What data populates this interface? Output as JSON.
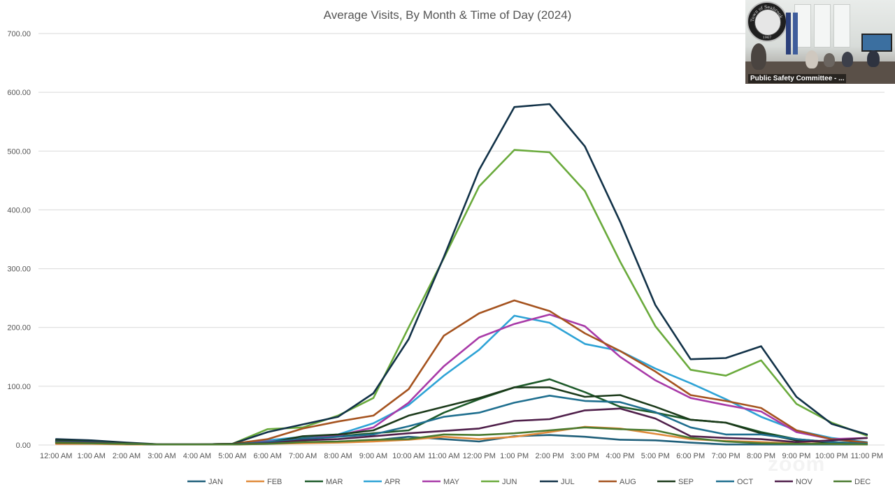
{
  "chart_data": {
    "type": "line",
    "title": "Average Visits, By Month & Time of Day (2024)",
    "xlabel": "",
    "ylabel": "",
    "ylim": [
      0,
      700
    ],
    "y_ticks": [
      "0.00",
      "100.00",
      "200.00",
      "300.00",
      "400.00",
      "500.00",
      "600.00",
      "700.00"
    ],
    "grid": "horizontal",
    "legend_position": "bottom",
    "categories": [
      "12:00 AM",
      "1:00 AM",
      "2:00 AM",
      "3:00 AM",
      "4:00 AM",
      "5:00 AM",
      "6:00 AM",
      "7:00 AM",
      "8:00 AM",
      "9:00 AM",
      "10:00 AM",
      "11:00 AM",
      "12:00 PM",
      "1:00 PM",
      "2:00 PM",
      "3:00 PM",
      "4:00 PM",
      "5:00 PM",
      "6:00 PM",
      "7:00 PM",
      "8:00 PM",
      "9:00 PM",
      "10:00 PM",
      "11:00 PM"
    ],
    "series": [
      {
        "name": "JAN",
        "color": "#1f5f7a",
        "values": [
          5,
          4,
          2,
          1,
          1,
          1,
          3,
          5,
          5,
          8,
          14,
          10,
          6,
          15,
          17,
          14,
          9,
          8,
          4,
          1,
          1,
          1,
          1,
          1
        ]
      },
      {
        "name": "FEB",
        "color": "#e08a3a",
        "values": [
          2,
          2,
          1,
          1,
          1,
          1,
          2,
          3,
          4,
          6,
          9,
          14,
          10,
          14,
          22,
          31,
          28,
          19,
          10,
          7,
          5,
          3,
          2,
          1
        ]
      },
      {
        "name": "MAR",
        "color": "#1d5a2a",
        "values": [
          6,
          5,
          3,
          1,
          1,
          2,
          5,
          12,
          15,
          20,
          25,
          55,
          78,
          98,
          112,
          90,
          65,
          55,
          43,
          38,
          22,
          10,
          5,
          3
        ]
      },
      {
        "name": "APR",
        "color": "#2ea3d6",
        "values": [
          4,
          3,
          2,
          1,
          1,
          1,
          8,
          14,
          18,
          37,
          68,
          118,
          162,
          220,
          208,
          172,
          160,
          130,
          105,
          78,
          48,
          25,
          12,
          5
        ]
      },
      {
        "name": "MAY",
        "color": "#a83aa8",
        "values": [
          6,
          5,
          3,
          1,
          1,
          2,
          6,
          10,
          16,
          30,
          72,
          134,
          183,
          206,
          222,
          202,
          150,
          110,
          80,
          68,
          57,
          22,
          10,
          12
        ]
      },
      {
        "name": "JUN",
        "color": "#6aaa3c",
        "values": [
          8,
          6,
          3,
          1,
          1,
          2,
          27,
          30,
          50,
          80,
          200,
          318,
          440,
          502,
          498,
          432,
          312,
          202,
          128,
          118,
          144,
          70,
          38,
          16
        ]
      },
      {
        "name": "JUL",
        "color": "#123248",
        "values": [
          10,
          8,
          4,
          1,
          1,
          2,
          22,
          35,
          48,
          88,
          180,
          320,
          468,
          575,
          580,
          508,
          380,
          238,
          146,
          148,
          168,
          82,
          36,
          18
        ]
      },
      {
        "name": "AUG",
        "color": "#a5531f",
        "values": [
          3,
          3,
          2,
          1,
          1,
          2,
          10,
          28,
          40,
          50,
          95,
          186,
          224,
          246,
          228,
          190,
          160,
          125,
          85,
          75,
          63,
          25,
          10,
          4
        ]
      },
      {
        "name": "SEP",
        "color": "#1b3a1a",
        "values": [
          8,
          6,
          3,
          1,
          1,
          2,
          4,
          15,
          18,
          25,
          50,
          65,
          80,
          98,
          98,
          82,
          85,
          65,
          43,
          38,
          20,
          8,
          4,
          2
        ]
      },
      {
        "name": "OCT",
        "color": "#1f6f8f",
        "values": [
          6,
          5,
          2,
          1,
          1,
          1,
          5,
          10,
          14,
          18,
          32,
          48,
          55,
          72,
          84,
          75,
          73,
          56,
          30,
          18,
          18,
          10,
          5,
          2
        ]
      },
      {
        "name": "NOV",
        "color": "#4f1f4a",
        "values": [
          5,
          4,
          2,
          1,
          1,
          1,
          3,
          8,
          10,
          15,
          20,
          24,
          28,
          41,
          44,
          59,
          62,
          45,
          15,
          12,
          10,
          5,
          8,
          12
        ]
      },
      {
        "name": "DEC",
        "color": "#4a7a2f",
        "values": [
          4,
          3,
          2,
          1,
          1,
          1,
          2,
          5,
          6,
          9,
          10,
          18,
          17,
          20,
          25,
          30,
          27,
          25,
          12,
          6,
          3,
          2,
          2,
          1
        ]
      }
    ]
  },
  "video_tile": {
    "caption": "Public Safety Committee - ...",
    "seal_text": "Town of Seabrook",
    "seal_year": "1967"
  },
  "watermark": "zoom"
}
